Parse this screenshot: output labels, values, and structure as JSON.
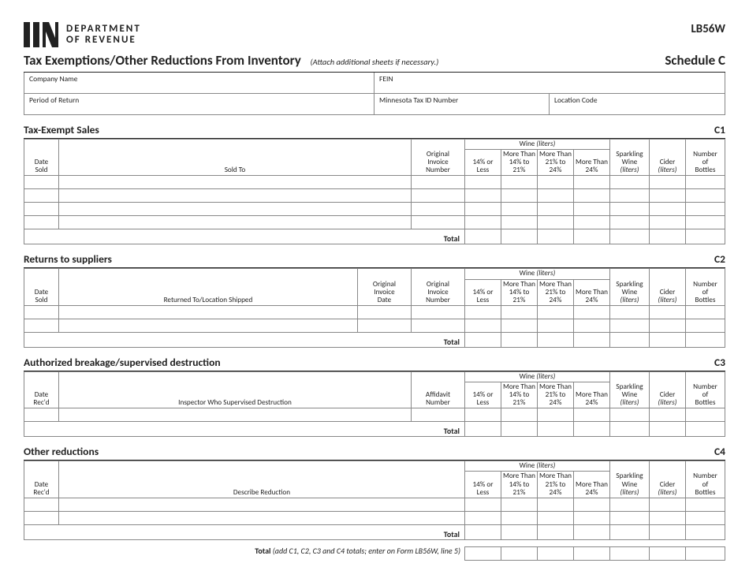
{
  "header": {
    "dept1": "DEPARTMENT",
    "dept2": "OF REVENUE",
    "formCode": "LB56W",
    "title": "Tax Exemptions/Other Reductions From Inventory",
    "titleNote": "(Attach additional sheets if necessary.)",
    "schedule": "Schedule C"
  },
  "idfields": {
    "company": "Company Name",
    "fein": "FEIN",
    "period": "Period of Return",
    "mntax": "Minnesota Tax ID Number",
    "loc": "Location Code"
  },
  "sections": {
    "c1": {
      "title": "Tax-Exempt Sales",
      "num": "C1",
      "dateLabel": "Date Sold",
      "whoLabel": "Sold To",
      "extraCols": [
        "Original Invoice Number"
      ],
      "rows": 4
    },
    "c2": {
      "title": "Returns to suppliers",
      "num": "C2",
      "dateLabel": "Date Sold",
      "whoLabel": "Returned To/Location Shipped",
      "extraCols": [
        "Original Invoice Date",
        "Original Invoice Number"
      ],
      "rows": 2
    },
    "c3": {
      "title": "Authorized breakage/supervised destruction",
      "num": "C3",
      "dateLabel": "Date Rec'd",
      "whoLabel": "Inspector Who Supervised Destruction",
      "extraCols": [
        "Affidavit Number"
      ],
      "rows": 1
    },
    "c4": {
      "title": "Other reductions",
      "num": "C4",
      "dateLabel": "Date Rec'd",
      "whoLabel": "Describe Reduction",
      "extraCols": [],
      "rows": 2
    }
  },
  "wine": {
    "group": "Wine",
    "groupUnit": "(liters)",
    "cols": [
      "14% or Less",
      "More Than 14% to 21%",
      "More Than 21% to 24%",
      "More Than 24%"
    ],
    "sparkling": "Sparkling Wine",
    "cider": "Cider",
    "unit": "(liters)",
    "bottles": "Number of Bottles"
  },
  "totals": {
    "rowLabel": "Total",
    "grandLabelBold": "Total",
    "grandLabelRest": "(add C1, C2, C3 and C4 totals; enter on Form LB56W, line 5)"
  },
  "colors": {
    "text": "#222222",
    "border": "#888888",
    "rule": "#222222",
    "background": "#ffffff"
  }
}
